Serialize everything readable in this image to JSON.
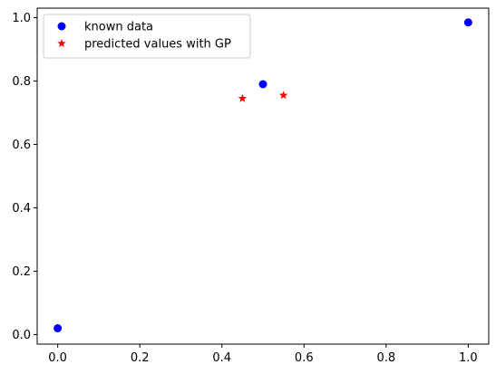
{
  "chart_data": {
    "type": "scatter",
    "title": "",
    "xlabel": "",
    "ylabel": "",
    "xlim": [
      -0.05,
      1.05
    ],
    "ylim": [
      -0.03,
      1.03
    ],
    "x_ticks": [
      0.0,
      0.2,
      0.4,
      0.6,
      0.8,
      1.0
    ],
    "x_tick_labels": [
      "0.0",
      "0.2",
      "0.4",
      "0.6",
      "0.8",
      "1.0"
    ],
    "y_ticks": [
      0.0,
      0.2,
      0.4,
      0.6,
      0.8,
      1.0
    ],
    "y_tick_labels": [
      "0.0",
      "0.2",
      "0.4",
      "0.6",
      "0.8",
      "1.0"
    ],
    "grid": false,
    "legend_placement": "upper-left",
    "series": [
      {
        "name": "known data",
        "marker": "circle",
        "color": "#0000ff",
        "x": [
          0.0,
          0.5,
          1.0
        ],
        "y": [
          0.02,
          0.79,
          0.985
        ]
      },
      {
        "name": "predicted values with GP",
        "marker": "star",
        "color": "#ff0000",
        "x": [
          0.45,
          0.55
        ],
        "y": [
          0.745,
          0.755
        ]
      }
    ]
  }
}
